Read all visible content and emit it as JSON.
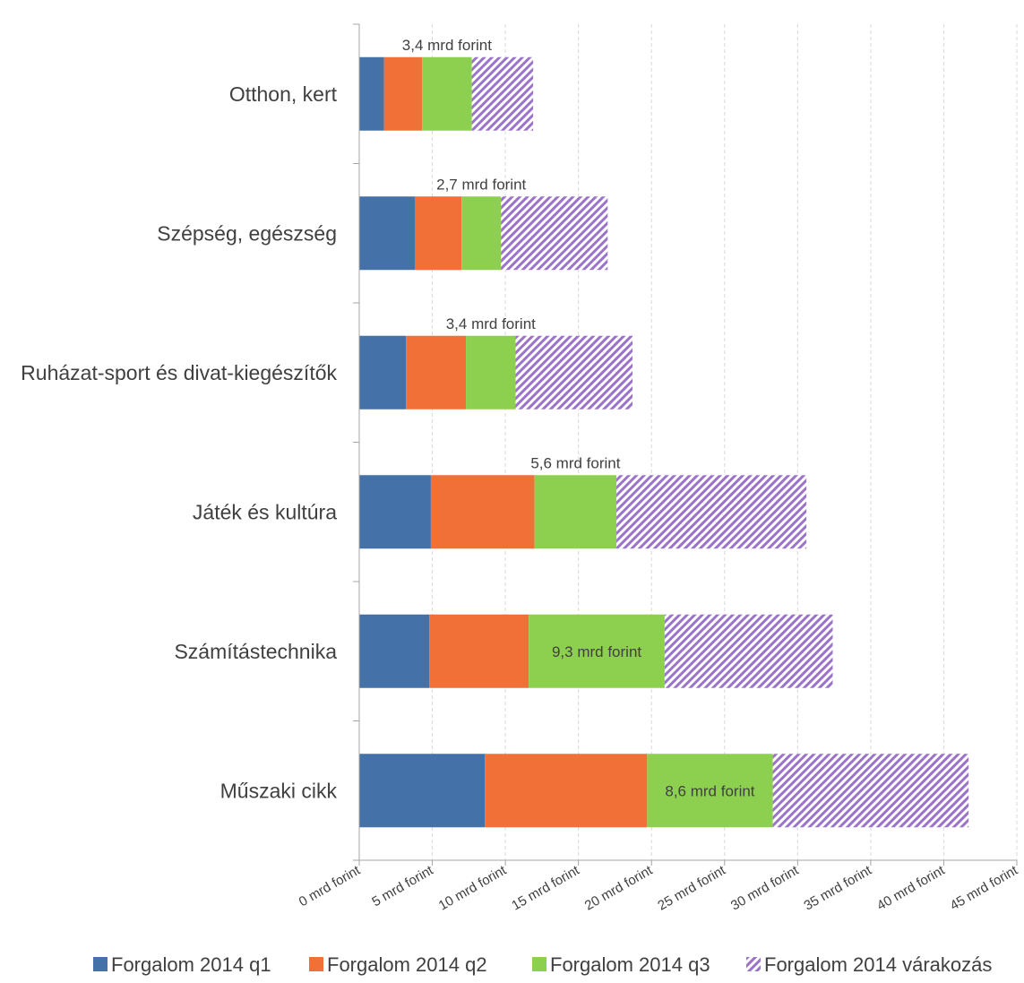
{
  "chart_data": {
    "type": "bar",
    "orientation": "horizontal",
    "stacked": true,
    "categories": [
      "Otthon, kert",
      "Szépség, egészség",
      "Ruházat-sport és divat-kiegészítők",
      "Játék és kultúra",
      "Számítástechnika",
      "Műszaki cikk"
    ],
    "series": [
      {
        "name": "Forgalom 2014 q1",
        "values": [
          1.7,
          3.8,
          3.2,
          4.9,
          4.8,
          8.6
        ],
        "color": "#4472a8",
        "pattern": "solid"
      },
      {
        "name": "Forgalom 2014 q2",
        "values": [
          2.6,
          3.2,
          4.1,
          7.1,
          6.8,
          11.1
        ],
        "color": "#f07038",
        "pattern": "solid"
      },
      {
        "name": "Forgalom 2014 q3",
        "values": [
          3.4,
          2.7,
          3.4,
          5.6,
          9.3,
          8.6
        ],
        "color": "#8dd04f",
        "pattern": "solid"
      },
      {
        "name": "Forgalom 2014 várakozás",
        "values": [
          4.2,
          7.3,
          8.0,
          13.0,
          11.5,
          13.4
        ],
        "color": "#9b73c8",
        "pattern": "hatch"
      }
    ],
    "data_labels": [
      "3,4 mrd forint",
      "2,7 mrd forint",
      "3,4 mrd forint",
      "5,6 mrd forint",
      "9,3 mrd forint",
      "8,6 mrd forint"
    ],
    "label_positions": [
      "above",
      "above",
      "above",
      "above",
      "inside",
      "inside"
    ],
    "xlim": [
      0,
      45
    ],
    "xticks": [
      0,
      5,
      10,
      15,
      20,
      25,
      30,
      35,
      40,
      45
    ],
    "xtick_labels": [
      "0 mrd forint",
      "5 mrd forint",
      "10 mrd forint",
      "15 mrd forint",
      "20 mrd forint",
      "25 mrd forint",
      "30 mrd forint",
      "35 mrd forint",
      "40 mrd forint",
      "45 mrd forint"
    ],
    "grid": "vertical-dashed",
    "legend_position": "bottom",
    "title": "",
    "xlabel": "",
    "ylabel": ""
  }
}
